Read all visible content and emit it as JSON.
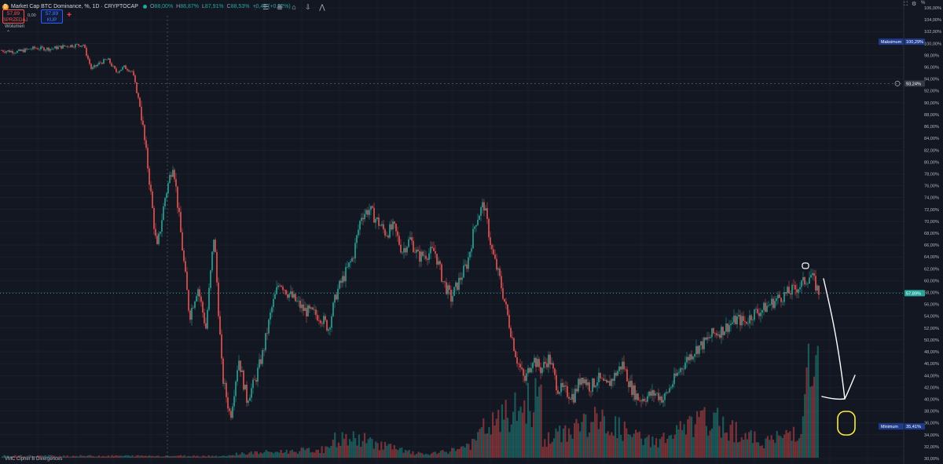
{
  "legend": {
    "title": "Market Cap BTC Dominance, %, 1D · CRYPTOCAP",
    "ohlc": [
      {
        "key": "O",
        "value": "88,00%"
      },
      {
        "key": "H",
        "value": "88,87%"
      },
      {
        "key": "L",
        "value": "87,91%"
      },
      {
        "key": "C",
        "value": "88,53%"
      }
    ],
    "change": "+0,46 (+0,52%)",
    "symbol_icon": "bitcoin-icon",
    "market_status_color": "#26a69a"
  },
  "trade": {
    "sell_price": "57,89",
    "sell_label": "SPRZEDAJ",
    "spread": "0,00",
    "buy_price": "57,89",
    "buy_label": "KUP"
  },
  "indicators": {
    "volume": "Wolumen",
    "vmc": "VMC Cipher B Divergences"
  },
  "toolbar_icons": [
    "grip-icon",
    "bars-list-icon",
    "text-note-icon",
    "tag-icon",
    "arrow-down-icon",
    "zigzag-icon"
  ],
  "window_icons": [
    "fullscreen-icon",
    "gear-icon"
  ],
  "axis": {
    "unit": "%",
    "ticks": [
      "106,00%",
      "104,00%",
      "102,00%",
      "100,00%",
      "98,00%",
      "96,00%",
      "94,00%",
      "92,00%",
      "90,00%",
      "88,00%",
      "86,00%",
      "84,00%",
      "82,00%",
      "80,00%",
      "78,00%",
      "76,00%",
      "74,00%",
      "72,00%",
      "70,00%",
      "68,00%",
      "66,00%",
      "64,00%",
      "62,00%",
      "60,00%",
      "58,00%",
      "56,00%",
      "54,00%",
      "52,00%",
      "50,00%",
      "48,00%",
      "46,00%",
      "44,00%",
      "42,00%",
      "40,00%",
      "38,00%",
      "36,00%",
      "34,00%",
      "32,00%",
      "30,00%"
    ],
    "max_label": "Maksimum",
    "max_value": "100,29%",
    "min_label": "Minimum",
    "min_value": "35,41%",
    "crosshair_value": "93,24%",
    "last_value": "57,89%"
  },
  "colors": {
    "background": "#131722",
    "up": "#26a69a",
    "down": "#ef5350",
    "grid": "#1f2433",
    "annotation_white": "#ffffff",
    "annotation_yellow": "#ffeb3b"
  },
  "chart_data": {
    "type": "line",
    "ylim": [
      30,
      106
    ],
    "x": [
      0,
      2,
      4,
      6,
      8,
      10,
      11,
      12,
      13,
      14,
      15,
      16,
      17,
      18,
      19,
      20,
      21,
      23,
      24,
      25,
      26,
      27,
      28,
      29,
      30,
      31,
      32,
      33,
      34,
      35,
      37,
      39,
      40,
      41,
      43,
      44,
      45,
      47,
      48,
      49,
      50,
      51,
      53,
      54,
      55,
      56,
      57,
      58,
      59,
      60,
      61,
      63,
      64,
      65,
      66,
      67,
      68,
      70,
      71,
      72,
      73,
      74,
      76,
      77,
      78,
      79,
      80,
      81,
      82,
      83,
      84,
      85,
      86,
      87,
      88,
      89,
      90,
      91,
      92,
      93,
      95,
      97,
      98,
      99,
      100
    ],
    "series": [
      {
        "values": [
          98.8,
          98.6,
          99.2,
          99.1,
          99.6,
          99.8,
          95.6,
          96.7,
          97.3,
          95.2,
          96.0,
          95.3,
          89.0,
          78.0,
          65.0,
          74.0,
          80.0,
          54.0,
          59.0,
          52.0,
          68.0,
          44.0,
          37.0,
          47.0,
          40.0,
          43.0,
          48.0,
          55.0,
          60.0,
          58.0,
          55.0,
          54.0,
          52.0,
          58.0,
          64.0,
          71.0,
          72.0,
          68.0,
          69.0,
          65.0,
          67.0,
          64.0,
          65.0,
          60.0,
          57.0,
          60.0,
          63.0,
          70.0,
          73.0,
          65.0,
          60.0,
          47.0,
          43.0,
          47.0,
          45.0,
          47.0,
          42.0,
          40.5,
          44.0,
          42.0,
          43.5,
          42.0,
          46.0,
          42.0,
          40.0,
          40.5,
          41.0,
          40.0,
          42.5,
          45.0,
          47.0,
          48.5,
          49.5,
          51.0,
          51.5,
          52.5,
          53.5,
          53.0,
          54.5,
          55.0,
          57.0,
          58.5,
          59.5,
          61.0,
          58.0
        ]
      }
    ],
    "annotations": [
      "circle-marker-at-peak",
      "hand-drawn-down-arrow",
      "yellow-circle-target"
    ]
  }
}
